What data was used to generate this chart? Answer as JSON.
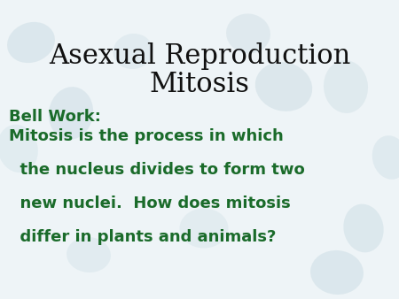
{
  "title_line1": "Asexual Reproduction",
  "title_line2": "Mitosis",
  "title_color": "#111111",
  "title_fontsize": 22,
  "bell_work_label": "Bell Work:",
  "bell_work_color": "#1a6b2a",
  "bell_work_fontsize": 13,
  "body_lines": [
    "Mitosis is the process in which",
    "  the nucleus divides to form two",
    "  new nuclei.  How does mitosis",
    "  differ in plants and animals?"
  ],
  "body_color": "#1a6b2a",
  "body_fontsize": 13,
  "background_color": "#eef4f7",
  "figwidth": 4.5,
  "figheight": 3.38,
  "dpi": 100
}
